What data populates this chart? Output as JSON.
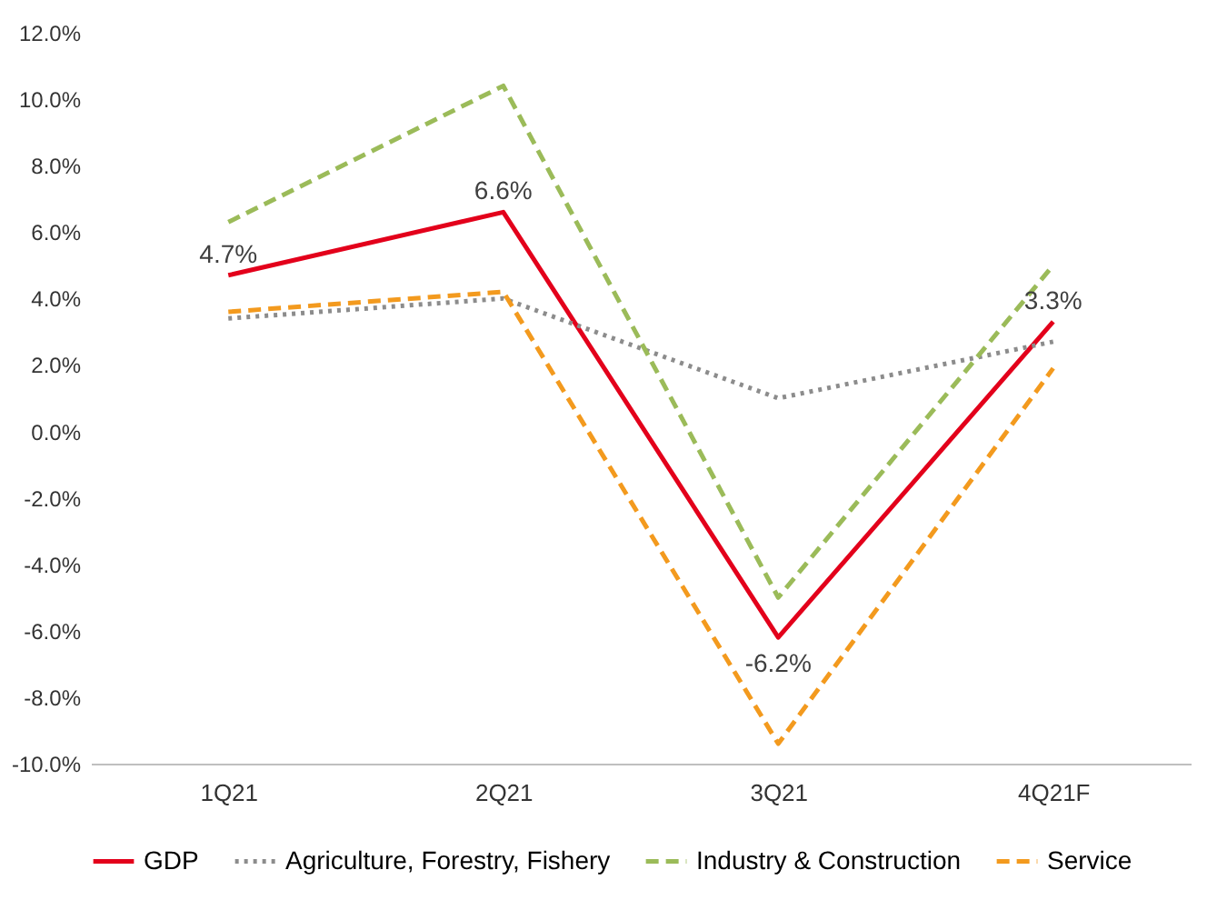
{
  "chart_data": {
    "type": "line",
    "categories": [
      "1Q21",
      "2Q21",
      "3Q21",
      "4Q21F"
    ],
    "series": [
      {
        "name": "GDP",
        "color": "#e3001b",
        "line_style": "solid",
        "values": [
          4.7,
          6.6,
          -6.2,
          3.3
        ],
        "value_labels": [
          "4.7%",
          "6.6%",
          "-6.2%",
          "3.3%"
        ]
      },
      {
        "name": "Agriculture, Forestry, Fishery",
        "color": "#8c8c8c",
        "line_style": "dotted",
        "values": [
          3.4,
          4.0,
          1.0,
          2.7
        ]
      },
      {
        "name": "Industry & Construction",
        "color": "#9bbb59",
        "line_style": "dashed",
        "values": [
          6.3,
          10.4,
          -5.0,
          5.0
        ]
      },
      {
        "name": "Service",
        "color": "#f39a1e",
        "line_style": "dashed",
        "values": [
          3.6,
          4.2,
          -9.4,
          1.9
        ]
      }
    ],
    "ylim": [
      -10,
      12
    ],
    "yticks": [
      {
        "value": -10,
        "label": "-10.0%"
      },
      {
        "value": -8,
        "label": "-8.0%"
      },
      {
        "value": -6,
        "label": "-6.0%"
      },
      {
        "value": -4,
        "label": "-4.0%"
      },
      {
        "value": -2,
        "label": "-2.0%"
      },
      {
        "value": 0,
        "label": "0.0%"
      },
      {
        "value": 2,
        "label": "2.0%"
      },
      {
        "value": 4,
        "label": "4.0%"
      },
      {
        "value": 6,
        "label": "6.0%"
      },
      {
        "value": 8,
        "label": "8.0%"
      },
      {
        "value": 10,
        "label": "10.0%"
      },
      {
        "value": 12,
        "label": "12.0%"
      }
    ],
    "grid": false,
    "legend": "bottom",
    "marker": "none"
  }
}
